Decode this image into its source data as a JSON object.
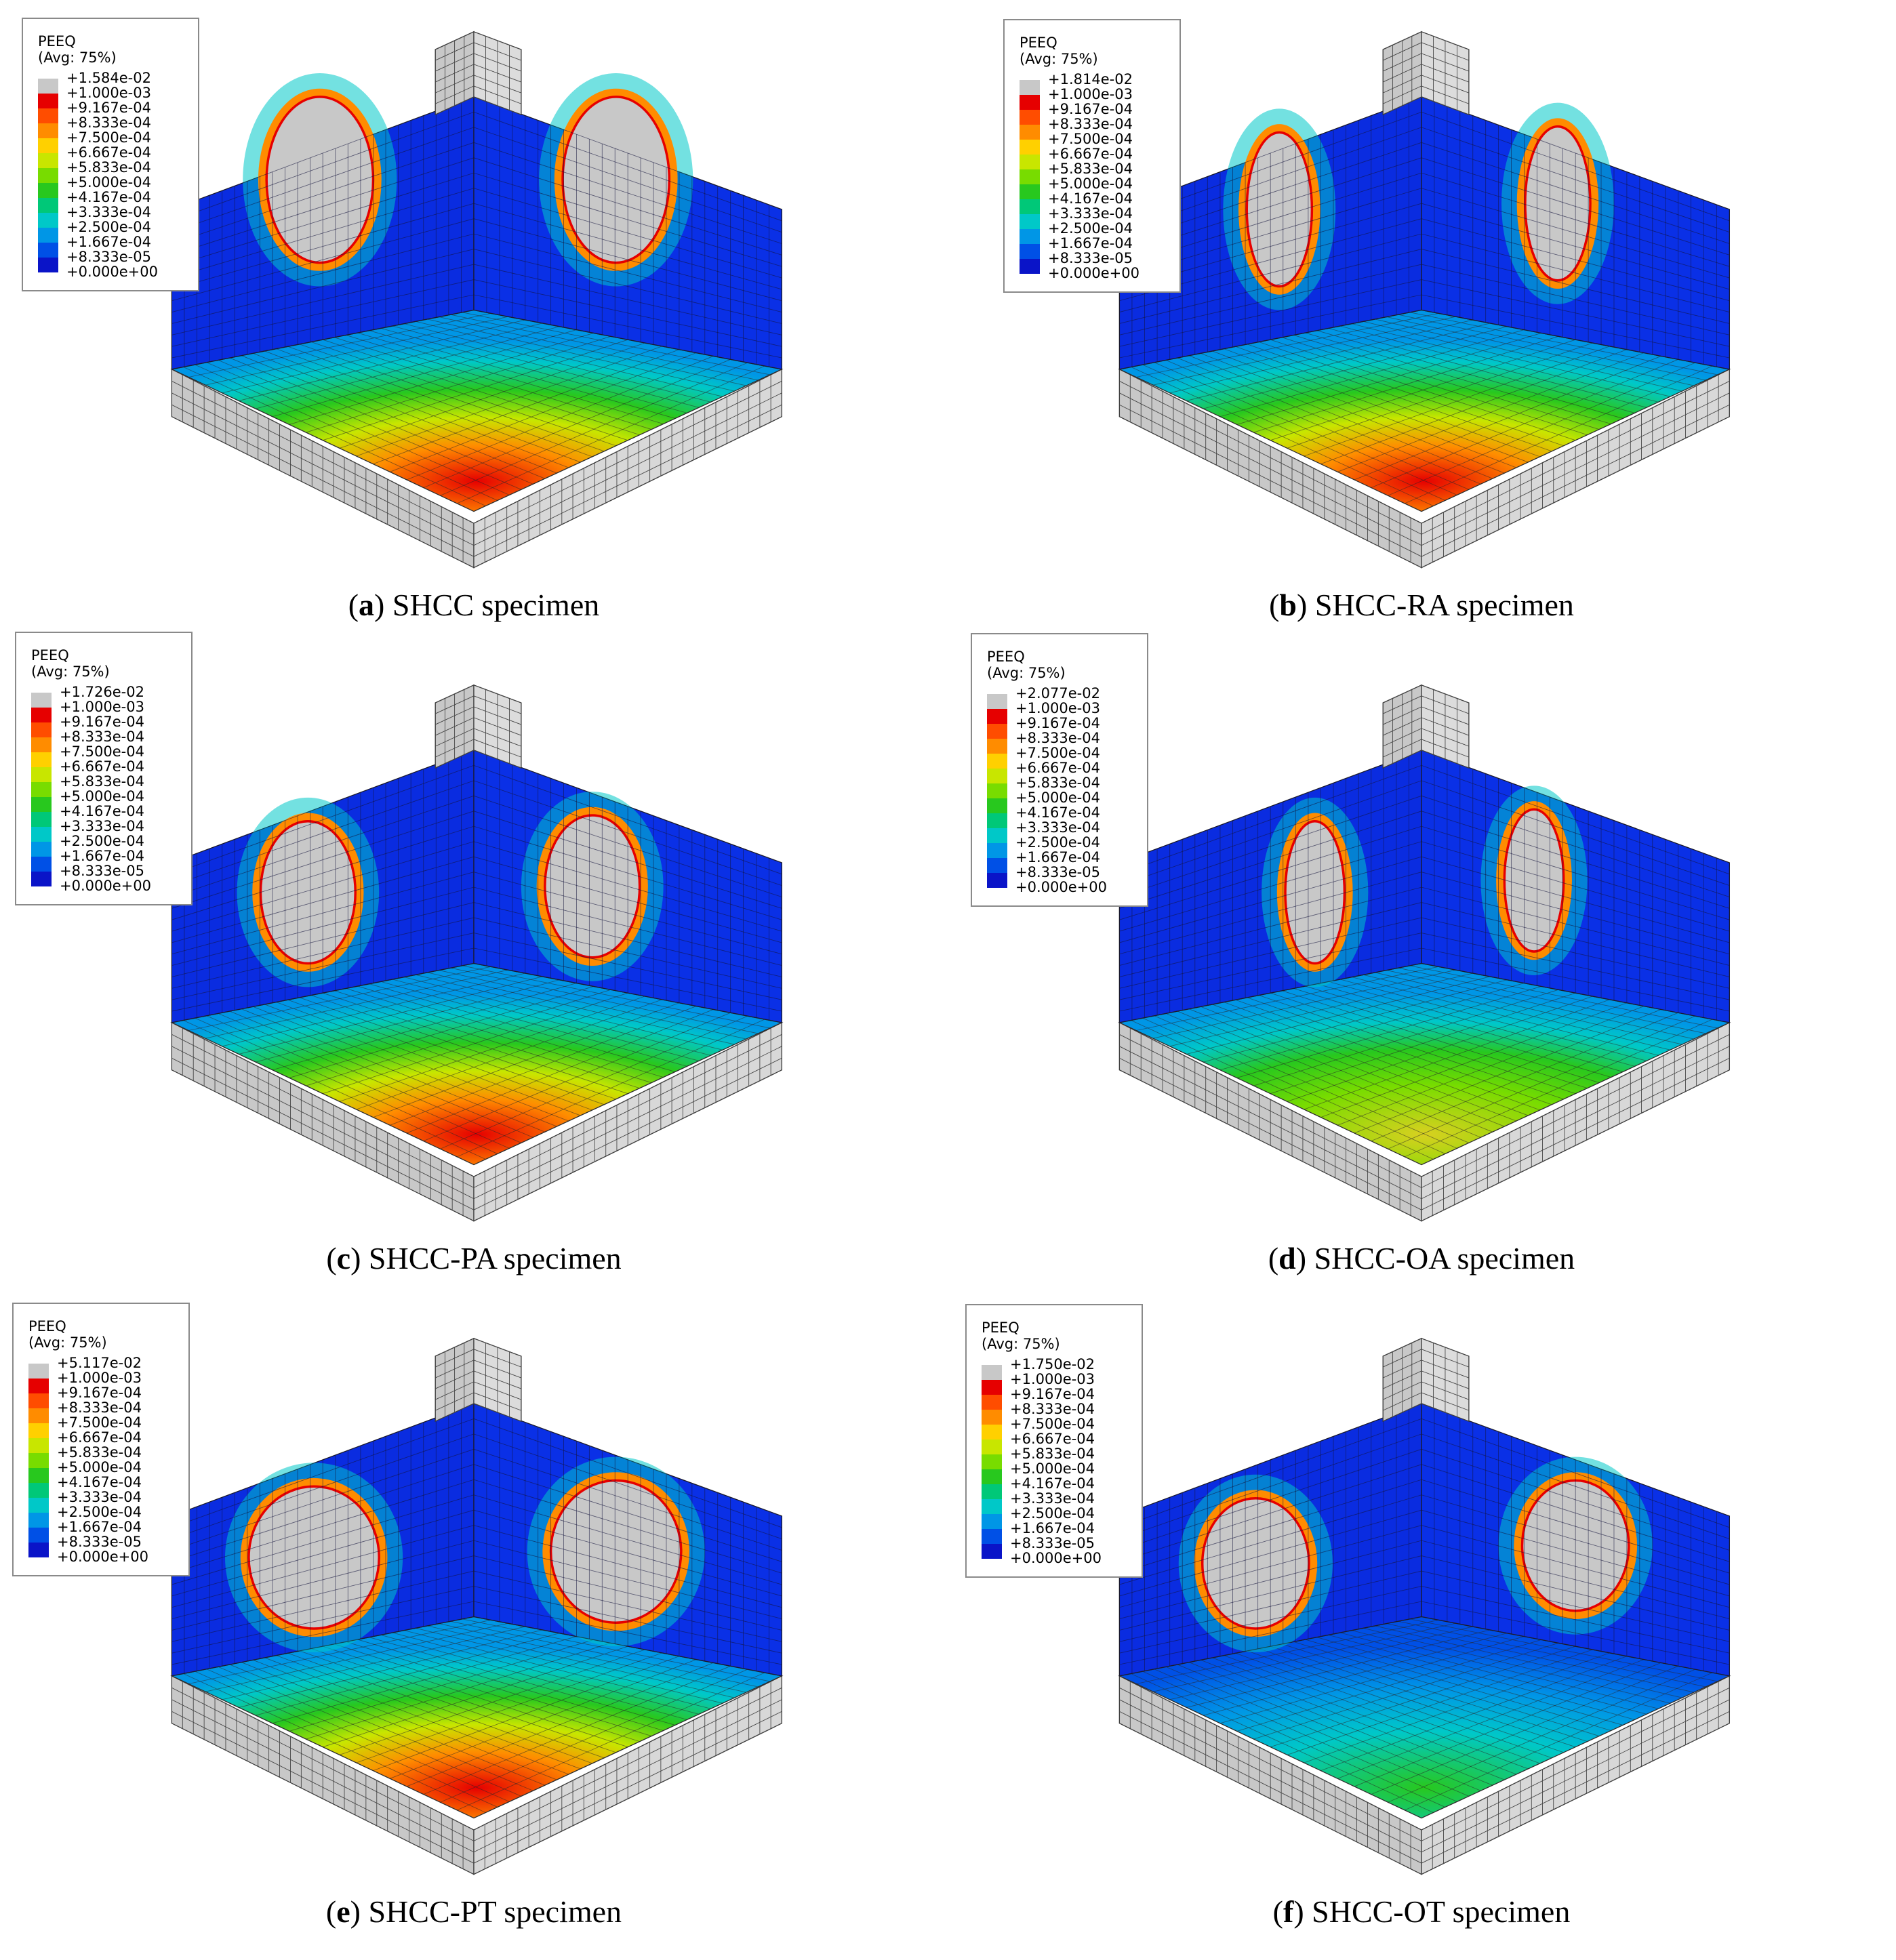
{
  "legend": {
    "variable": "PEEQ",
    "averaging": "(Avg: 75%)",
    "levels": [
      "+1.000e-03",
      "+9.167e-04",
      "+8.333e-04",
      "+7.500e-04",
      "+6.667e-04",
      "+5.833e-04",
      "+5.000e-04",
      "+4.167e-04",
      "+3.333e-04",
      "+2.500e-04",
      "+1.667e-04",
      "+8.333e-05",
      "+0.000e+00"
    ],
    "colors": [
      "#c8c8c8",
      "#e60000",
      "#ff4d00",
      "#ff8c00",
      "#ffd000",
      "#c8e600",
      "#78dc00",
      "#28c81e",
      "#00c878",
      "#00c8c8",
      "#0096e6",
      "#0050e6",
      "#0a14c8"
    ]
  },
  "panels": [
    {
      "letter": "a",
      "caption": "SHCC specimen",
      "max": "+1.584e-02",
      "variant": "a"
    },
    {
      "letter": "b",
      "caption": "SHCC-RA specimen",
      "max": "+1.814e-02",
      "variant": "b"
    },
    {
      "letter": "c",
      "caption": "SHCC-PA specimen",
      "max": "+1.726e-02",
      "variant": "c"
    },
    {
      "letter": "d",
      "caption": "SHCC-OA specimen",
      "max": "+2.077e-02",
      "variant": "d"
    },
    {
      "letter": "e",
      "caption": "SHCC-PT specimen",
      "max": "+5.117e-02",
      "variant": "e"
    },
    {
      "letter": "f",
      "caption": "SHCC-OT specimen",
      "max": "+1.750e-02",
      "variant": "f"
    }
  ]
}
